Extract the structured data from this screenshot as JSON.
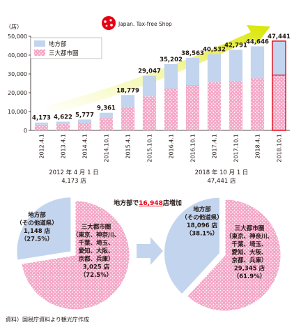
{
  "logo": {
    "text": "Japan. Tax-free Shop"
  },
  "chart_data": [
    {
      "type": "bar",
      "stacked": true,
      "y_unit_label": "（店）",
      "categories": [
        "2012.4.1",
        "2013.4.1",
        "2014.4.1",
        "2014.10.1",
        "2015.4.1",
        "2015.10.1",
        "2016.4.1",
        "2016.10.1",
        "2017.4.1",
        "2017.10.1",
        "2018.4.1",
        "2018.10.1"
      ],
      "totals": [
        4173,
        4622,
        5777,
        9361,
        18779,
        29047,
        35202,
        38563,
        40532,
        42791,
        44646,
        47441
      ],
      "total_labels": [
        "4,173",
        "4,622",
        "5,777",
        "9,361",
        "18,779",
        "29,047",
        "35,202",
        "38,563",
        "40,532",
        "42,791",
        "44,646",
        "47,441"
      ],
      "series": [
        {
          "name": "地方部",
          "color": "#c3d5ee",
          "values": [
            1148,
            1300,
            1700,
            2800,
            6400,
            11000,
            13000,
            14500,
            15000,
            16500,
            17000,
            18096
          ]
        },
        {
          "name": "三大都市圏",
          "color": "#f4a6c6",
          "values": [
            3025,
            3322,
            4077,
            6561,
            12379,
            18047,
            22202,
            24063,
            25532,
            26291,
            27646,
            29345
          ]
        }
      ],
      "ylim": [
        0,
        50000
      ],
      "yticks": [
        0,
        10000,
        20000,
        30000,
        40000,
        50000
      ],
      "ytick_labels": [
        "0",
        "10,000",
        "20,000",
        "30,000",
        "40,000",
        "50,000"
      ],
      "grid": false,
      "legend": "top-left",
      "highlight_last": true,
      "highlight_color": "#e60012"
    },
    {
      "type": "pie",
      "title": "2012 年 4 月 1 日",
      "subtitle": "4,173 店",
      "slices": [
        {
          "label": "三大都市圏",
          "value": 3025,
          "text": [
            "三大都市圏",
            "（東京、神奈川、",
            "千葉、埼玉、",
            "愛知、大阪、",
            "京都、兵庫）",
            "3,025 店",
            "（72.5%）"
          ]
        },
        {
          "label": "地方部",
          "value": 1148,
          "text": [
            "地方部",
            "（その他道県）",
            "1,148 店",
            "（27.5%）"
          ]
        }
      ]
    },
    {
      "type": "pie",
      "title": "2018 年 10 月 1 日",
      "subtitle": "47,441 店",
      "slices": [
        {
          "label": "三大都市圏",
          "value": 29345,
          "text": [
            "三大都市圏",
            "（東京、神奈川、",
            "千葉、埼玉、",
            "愛知、大阪、",
            "京都、兵庫）",
            "29,345 店",
            "（61.9%）"
          ]
        },
        {
          "label": "地方部",
          "value": 18096,
          "text": [
            "地方部",
            "（その他道県）",
            "18,096 店",
            "（38.1%）"
          ]
        }
      ]
    }
  ],
  "increase_note": {
    "prefix": "地方部で",
    "number": "16,948",
    "suffix": "店増加"
  },
  "footer": {
    "source": "資料）国税庁資料より観光庁作成"
  },
  "colors": {
    "rural": "#c3d5ee",
    "metro": "#f4a6c6",
    "text": "#231815",
    "accent": "#e60012"
  }
}
